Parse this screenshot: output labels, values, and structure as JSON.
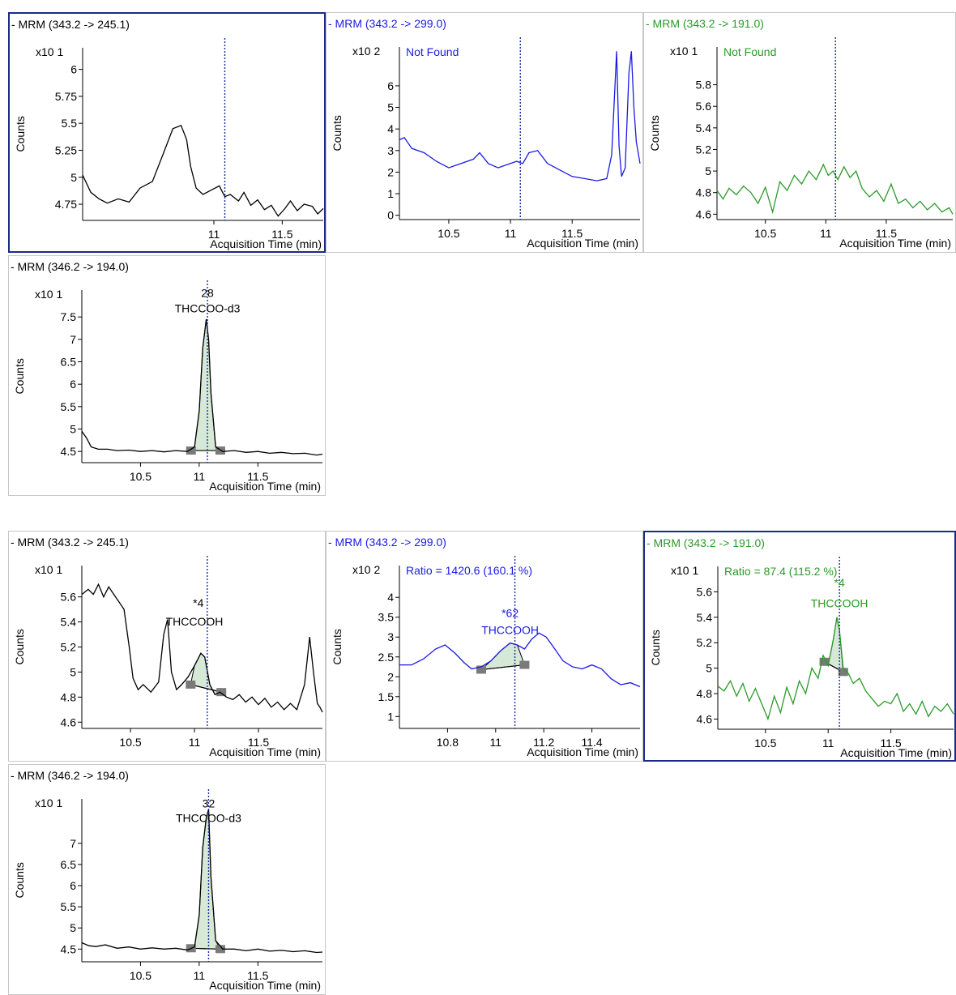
{
  "x_axis_label": "Acquisition Time (min)",
  "y_axis_label": "Counts",
  "colors": {
    "qualifier1": "#1a1ae6",
    "qualifier2": "#2a9a2a",
    "quantifier": "#000000",
    "marker_line": "#1a2aa0",
    "selected_border": "#1a2a8a"
  },
  "chart_data": [
    {
      "type": "line",
      "group": 1,
      "title": "- MRM (343.2 -> 245.1)",
      "color": "quantifier",
      "selected": true,
      "exponent_label": "x10 1",
      "annotation": "",
      "rt_marker": 11.08,
      "xlim": [
        10.04,
        11.8
      ],
      "ylim": [
        4.6,
        6.2
      ],
      "x_ticks": [
        {
          "v": 11,
          "t": "11"
        },
        {
          "v": 11.5,
          "t": "11.5"
        }
      ],
      "y_ticks": [
        {
          "v": 6,
          "t": "6"
        },
        {
          "v": 5.75,
          "t": "5.75"
        },
        {
          "v": 5.5,
          "t": "5.5"
        },
        {
          "v": 5.25,
          "t": "5.25"
        },
        {
          "v": 5,
          "t": "5"
        },
        {
          "v": 4.75,
          "t": "4.75"
        }
      ],
      "x": [
        10.04,
        10.1,
        10.16,
        10.22,
        10.3,
        10.38,
        10.46,
        10.55,
        10.63,
        10.7,
        10.76,
        10.8,
        10.83,
        10.87,
        10.92,
        10.98,
        11.04,
        11.08,
        11.12,
        11.18,
        11.22,
        11.27,
        11.32,
        11.37,
        11.42,
        11.47,
        11.52,
        11.56,
        11.61,
        11.66,
        11.72,
        11.76,
        11.8
      ],
      "y": [
        5.02,
        4.86,
        4.8,
        4.76,
        4.8,
        4.77,
        4.9,
        4.96,
        5.22,
        5.45,
        5.48,
        5.35,
        5.1,
        4.9,
        4.84,
        4.88,
        4.92,
        4.82,
        4.84,
        4.78,
        4.86,
        4.74,
        4.79,
        4.7,
        4.74,
        4.64,
        4.71,
        4.78,
        4.69,
        4.75,
        4.73,
        4.66,
        4.71
      ],
      "peak": null,
      "labels": []
    },
    {
      "type": "line",
      "group": 1,
      "title": "- MRM (343.2 -> 299.0)",
      "color": "qualifier1",
      "selected": false,
      "exponent_label": "x10 2",
      "annotation": "Not Found",
      "rt_marker": 11.08,
      "xlim": [
        10.1,
        12.05
      ],
      "ylim": [
        -0.2,
        7.8
      ],
      "x_ticks": [
        {
          "v": 10.5,
          "t": "10.5"
        },
        {
          "v": 11,
          "t": "11"
        },
        {
          "v": 11.5,
          "t": "11.5"
        }
      ],
      "y_ticks": [
        {
          "v": 6,
          "t": "6"
        },
        {
          "v": 5,
          "t": "5"
        },
        {
          "v": 4,
          "t": "4"
        },
        {
          "v": 3,
          "t": "3"
        },
        {
          "v": 2,
          "t": "2"
        },
        {
          "v": 1,
          "t": "1"
        },
        {
          "v": 0,
          "t": "0"
        }
      ],
      "x": [
        10.1,
        10.14,
        10.2,
        10.3,
        10.4,
        10.5,
        10.6,
        10.7,
        10.75,
        10.82,
        10.9,
        11,
        11.05,
        11.1,
        11.15,
        11.22,
        11.3,
        11.4,
        11.5,
        11.6,
        11.7,
        11.78,
        11.82,
        11.86,
        11.88,
        11.9,
        11.93,
        11.96,
        11.98,
        12.0,
        12.02,
        12.05
      ],
      "y": [
        3.5,
        3.6,
        3.1,
        2.9,
        2.5,
        2.2,
        2.4,
        2.6,
        2.9,
        2.4,
        2.2,
        2.4,
        2.5,
        2.4,
        2.9,
        3.0,
        2.4,
        2.1,
        1.8,
        1.7,
        1.6,
        1.7,
        2.8,
        7.6,
        3.2,
        1.8,
        2.2,
        6.6,
        7.6,
        5.0,
        3.4,
        2.4
      ],
      "peak": null,
      "labels": []
    },
    {
      "type": "line",
      "group": 1,
      "title": "- MRM (343.2 -> 191.0)",
      "color": "qualifier2",
      "selected": false,
      "exponent_label": "x10 1",
      "annotation": "Not Found",
      "rt_marker": 11.08,
      "xlim": [
        10.1,
        12.05
      ],
      "ylim": [
        4.55,
        6.15
      ],
      "x_ticks": [
        {
          "v": 10.5,
          "t": "10.5"
        },
        {
          "v": 11,
          "t": "11"
        },
        {
          "v": 11.5,
          "t": "11.5"
        }
      ],
      "y_ticks": [
        {
          "v": 5.8,
          "t": "5.8"
        },
        {
          "v": 5.6,
          "t": "5.6"
        },
        {
          "v": 5.4,
          "t": "5.4"
        },
        {
          "v": 5.2,
          "t": "5.2"
        },
        {
          "v": 5,
          "t": "5"
        },
        {
          "v": 4.8,
          "t": "4.8"
        },
        {
          "v": 4.6,
          "t": "4.6"
        }
      ],
      "x": [
        10.1,
        10.15,
        10.2,
        10.26,
        10.32,
        10.38,
        10.44,
        10.5,
        10.56,
        10.62,
        10.68,
        10.74,
        10.8,
        10.86,
        10.92,
        10.98,
        11.02,
        11.06,
        11.1,
        11.15,
        11.2,
        11.25,
        11.3,
        11.36,
        11.42,
        11.48,
        11.54,
        11.6,
        11.66,
        11.72,
        11.78,
        11.84,
        11.9,
        11.96,
        12.02,
        12.05
      ],
      "y": [
        4.82,
        4.74,
        4.84,
        4.78,
        4.86,
        4.8,
        4.7,
        4.85,
        4.62,
        4.9,
        4.82,
        4.96,
        4.88,
        5.0,
        4.92,
        5.06,
        4.96,
        5.0,
        4.92,
        5.04,
        4.94,
        5.0,
        4.84,
        4.76,
        4.82,
        4.72,
        4.88,
        4.7,
        4.74,
        4.66,
        4.72,
        4.64,
        4.7,
        4.62,
        4.66,
        4.6
      ],
      "peak": null,
      "labels": []
    },
    {
      "type": "line",
      "group": 1,
      "title": "- MRM (346.2 -> 194.0)",
      "color": "quantifier",
      "selected": false,
      "exponent_label": "x10 1",
      "annotation": "",
      "rt_marker": 11.07,
      "xlim": [
        10.0,
        12.05
      ],
      "ylim": [
        4.25,
        8.1
      ],
      "x_ticks": [
        {
          "v": 10.5,
          "t": "10.5"
        },
        {
          "v": 11,
          "t": "11"
        },
        {
          "v": 11.5,
          "t": "11.5"
        }
      ],
      "y_ticks": [
        {
          "v": 7.5,
          "t": "7.5"
        },
        {
          "v": 7,
          "t": "7"
        },
        {
          "v": 6.5,
          "t": "6.5"
        },
        {
          "v": 6,
          "t": "6"
        },
        {
          "v": 5.5,
          "t": "5.5"
        },
        {
          "v": 5,
          "t": "5"
        },
        {
          "v": 4.5,
          "t": "4.5"
        }
      ],
      "x": [
        10.0,
        10.04,
        10.08,
        10.14,
        10.22,
        10.3,
        10.4,
        10.5,
        10.6,
        10.7,
        10.8,
        10.9,
        10.96,
        11.0,
        11.03,
        11.06,
        11.08,
        11.1,
        11.14,
        11.2,
        11.3,
        11.4,
        11.5,
        11.6,
        11.7,
        11.8,
        11.9,
        12.0,
        12.05
      ],
      "y": [
        4.95,
        4.8,
        4.6,
        4.55,
        4.55,
        4.52,
        4.53,
        4.5,
        4.52,
        4.49,
        4.52,
        4.5,
        4.6,
        5.4,
        6.8,
        7.45,
        7.0,
        5.8,
        4.6,
        4.5,
        4.52,
        4.48,
        4.5,
        4.46,
        4.48,
        4.45,
        4.46,
        4.42,
        4.44
      ],
      "peak": {
        "start": 10.93,
        "end": 11.18,
        "base_start": 4.52,
        "base_end": 4.52
      },
      "labels": [
        {
          "text": "28",
          "x": 11.07,
          "y": 7.95
        },
        {
          "text": "THCCOO-d3",
          "x": 11.07,
          "y": 7.6
        }
      ]
    },
    {
      "type": "line",
      "group": 2,
      "title": "- MRM (343.2 -> 245.1)",
      "color": "quantifier",
      "selected": false,
      "exponent_label": "x10 1",
      "annotation": "",
      "rt_marker": 11.1,
      "xlim": [
        10.12,
        12.0
      ],
      "ylim": [
        4.55,
        5.85
      ],
      "x_ticks": [
        {
          "v": 10.5,
          "t": "10.5"
        },
        {
          "v": 11,
          "t": "11"
        },
        {
          "v": 11.5,
          "t": "11.5"
        }
      ],
      "y_ticks": [
        {
          "v": 5.6,
          "t": "5.6"
        },
        {
          "v": 5.4,
          "t": "5.4"
        },
        {
          "v": 5.2,
          "t": "5.2"
        },
        {
          "v": 5,
          "t": "5"
        },
        {
          "v": 4.8,
          "t": "4.8"
        },
        {
          "v": 4.6,
          "t": "4.6"
        }
      ],
      "x": [
        10.12,
        10.17,
        10.21,
        10.25,
        10.29,
        10.33,
        10.37,
        10.41,
        10.45,
        10.49,
        10.52,
        10.56,
        10.6,
        10.66,
        10.72,
        10.76,
        10.79,
        10.82,
        10.86,
        10.9,
        10.95,
        11.0,
        11.05,
        11.08,
        11.12,
        11.16,
        11.2,
        11.25,
        11.3,
        11.35,
        11.4,
        11.45,
        11.5,
        11.55,
        11.6,
        11.65,
        11.7,
        11.75,
        11.8,
        11.86,
        11.9,
        11.93,
        11.96,
        11.98,
        12.0
      ],
      "y": [
        5.62,
        5.66,
        5.62,
        5.7,
        5.6,
        5.68,
        5.62,
        5.56,
        5.5,
        5.2,
        4.95,
        4.86,
        4.9,
        4.84,
        4.92,
        5.3,
        5.42,
        5.0,
        4.86,
        4.9,
        4.96,
        5.05,
        5.15,
        5.12,
        4.9,
        4.82,
        4.84,
        4.8,
        4.78,
        4.82,
        4.76,
        4.8,
        4.74,
        4.79,
        4.72,
        4.76,
        4.7,
        4.75,
        4.7,
        4.9,
        5.28,
        5.0,
        4.75,
        4.72,
        4.68
      ],
      "peak": {
        "start": 10.97,
        "end": 11.21,
        "base_start": 4.9,
        "base_end": 4.84
      },
      "labels": [
        {
          "text": "*4",
          "x": 11.03,
          "y": 5.52
        },
        {
          "text": "THCCOOH",
          "x": 11.0,
          "y": 5.37
        }
      ]
    },
    {
      "type": "line",
      "group": 2,
      "title": "- MRM (343.2 -> 299.0)",
      "color": "qualifier1",
      "selected": false,
      "exponent_label": "x10 2",
      "annotation": "Ratio = 1420.6 (160.1 %)",
      "rt_marker": 11.08,
      "xlim": [
        10.6,
        11.6
      ],
      "ylim": [
        0.7,
        4.8
      ],
      "x_ticks": [
        {
          "v": 10.8,
          "t": "10.8"
        },
        {
          "v": 11,
          "t": "11"
        },
        {
          "v": 11.2,
          "t": "11.2"
        },
        {
          "v": 11.4,
          "t": "11.4"
        }
      ],
      "y_ticks": [
        {
          "v": 4,
          "t": "4"
        },
        {
          "v": 3.5,
          "t": "3.5"
        },
        {
          "v": 3,
          "t": "3"
        },
        {
          "v": 2.5,
          "t": "2.5"
        },
        {
          "v": 2,
          "t": "2"
        },
        {
          "v": 1.5,
          "t": "1.5"
        },
        {
          "v": 1,
          "t": "1"
        }
      ],
      "x": [
        10.6,
        10.65,
        10.7,
        10.75,
        10.79,
        10.83,
        10.87,
        10.9,
        10.94,
        10.98,
        11.02,
        11.06,
        11.09,
        11.12,
        11.15,
        11.18,
        11.21,
        11.24,
        11.28,
        11.32,
        11.36,
        11.4,
        11.44,
        11.48,
        11.52,
        11.56,
        11.6
      ],
      "y": [
        2.3,
        2.3,
        2.45,
        2.7,
        2.8,
        2.6,
        2.35,
        2.2,
        2.25,
        2.4,
        2.65,
        2.85,
        2.8,
        2.7,
        2.95,
        3.1,
        3.0,
        2.75,
        2.4,
        2.25,
        2.2,
        2.3,
        2.2,
        1.95,
        1.8,
        1.85,
        1.75
      ],
      "peak": {
        "start": 10.94,
        "end": 11.12,
        "base_start": 2.18,
        "base_end": 2.3
      },
      "labels": [
        {
          "text": "*62",
          "x": 11.06,
          "y": 3.5
        },
        {
          "text": "THCCOOH",
          "x": 11.06,
          "y": 3.08
        }
      ]
    },
    {
      "type": "line",
      "group": 2,
      "title": "- MRM (343.2 -> 191.0)",
      "color": "qualifier2",
      "selected": true,
      "exponent_label": "x10 1",
      "annotation": "Ratio = 87.4 (115.2 %)",
      "rt_marker": 11.09,
      "xlim": [
        10.12,
        12.0
      ],
      "ylim": [
        4.52,
        5.8
      ],
      "x_ticks": [
        {
          "v": 10.5,
          "t": "10.5"
        },
        {
          "v": 11,
          "t": "11"
        },
        {
          "v": 11.5,
          "t": "11.5"
        }
      ],
      "y_ticks": [
        {
          "v": 5.6,
          "t": "5.6"
        },
        {
          "v": 5.4,
          "t": "5.4"
        },
        {
          "v": 5.2,
          "t": "5.2"
        },
        {
          "v": 5,
          "t": "5"
        },
        {
          "v": 4.8,
          "t": "4.8"
        },
        {
          "v": 4.6,
          "t": "4.6"
        }
      ],
      "x": [
        10.12,
        10.17,
        10.22,
        10.27,
        10.32,
        10.37,
        10.42,
        10.47,
        10.52,
        10.57,
        10.62,
        10.67,
        10.72,
        10.77,
        10.82,
        10.87,
        10.92,
        10.96,
        11.0,
        11.04,
        11.07,
        11.09,
        11.12,
        11.16,
        11.2,
        11.25,
        11.3,
        11.35,
        11.4,
        11.45,
        11.5,
        11.55,
        11.6,
        11.65,
        11.7,
        11.75,
        11.8,
        11.85,
        11.9,
        11.95,
        12.0
      ],
      "y": [
        4.86,
        4.82,
        4.9,
        4.78,
        4.88,
        4.74,
        4.84,
        4.72,
        4.6,
        4.78,
        4.65,
        4.85,
        4.72,
        4.9,
        4.8,
        5.0,
        4.92,
        5.1,
        5.02,
        5.22,
        5.4,
        5.3,
        5.0,
        4.96,
        4.88,
        4.92,
        4.82,
        4.76,
        4.7,
        4.74,
        4.72,
        4.8,
        4.66,
        4.72,
        4.64,
        4.74,
        4.62,
        4.7,
        4.66,
        4.72,
        4.64
      ],
      "peak": {
        "start": 10.97,
        "end": 11.12,
        "base_start": 5.05,
        "base_end": 4.97
      },
      "labels": [
        {
          "text": "*4",
          "x": 11.09,
          "y": 5.64
        },
        {
          "text": "THCCOOH",
          "x": 11.09,
          "y": 5.48
        }
      ]
    },
    {
      "type": "line",
      "group": 2,
      "title": "- MRM (346.2 -> 194.0)",
      "color": "quantifier",
      "selected": false,
      "exponent_label": "x10 1",
      "annotation": "",
      "rt_marker": 11.08,
      "xlim": [
        10.0,
        12.05
      ],
      "ylim": [
        4.2,
        8.05
      ],
      "x_ticks": [
        {
          "v": 10.5,
          "t": "10.5"
        },
        {
          "v": 11,
          "t": "11"
        },
        {
          "v": 11.5,
          "t": "11.5"
        }
      ],
      "y_ticks": [
        {
          "v": 7,
          "t": "7"
        },
        {
          "v": 6.5,
          "t": "6.5"
        },
        {
          "v": 6,
          "t": "6"
        },
        {
          "v": 5.5,
          "t": "5.5"
        },
        {
          "v": 5,
          "t": "5"
        },
        {
          "v": 4.5,
          "t": "4.5"
        }
      ],
      "x": [
        10.0,
        10.06,
        10.12,
        10.2,
        10.3,
        10.4,
        10.5,
        10.6,
        10.7,
        10.8,
        10.9,
        10.96,
        11.0,
        11.03,
        11.06,
        11.08,
        11.1,
        11.14,
        11.2,
        11.3,
        11.4,
        11.5,
        11.6,
        11.7,
        11.8,
        11.9,
        12.0,
        12.05
      ],
      "y": [
        4.65,
        4.58,
        4.56,
        4.6,
        4.52,
        4.55,
        4.5,
        4.53,
        4.5,
        4.52,
        4.48,
        4.55,
        5.3,
        6.9,
        7.6,
        7.8,
        6.2,
        4.7,
        4.5,
        4.5,
        4.46,
        4.5,
        4.45,
        4.47,
        4.44,
        4.46,
        4.42,
        4.43
      ],
      "peak": {
        "start": 10.93,
        "end": 11.18,
        "base_start": 4.52,
        "base_end": 4.5
      },
      "labels": [
        {
          "text": "32",
          "x": 11.08,
          "y": 7.85
        },
        {
          "text": "THCCOO-d3",
          "x": 11.08,
          "y": 7.5
        }
      ]
    }
  ]
}
